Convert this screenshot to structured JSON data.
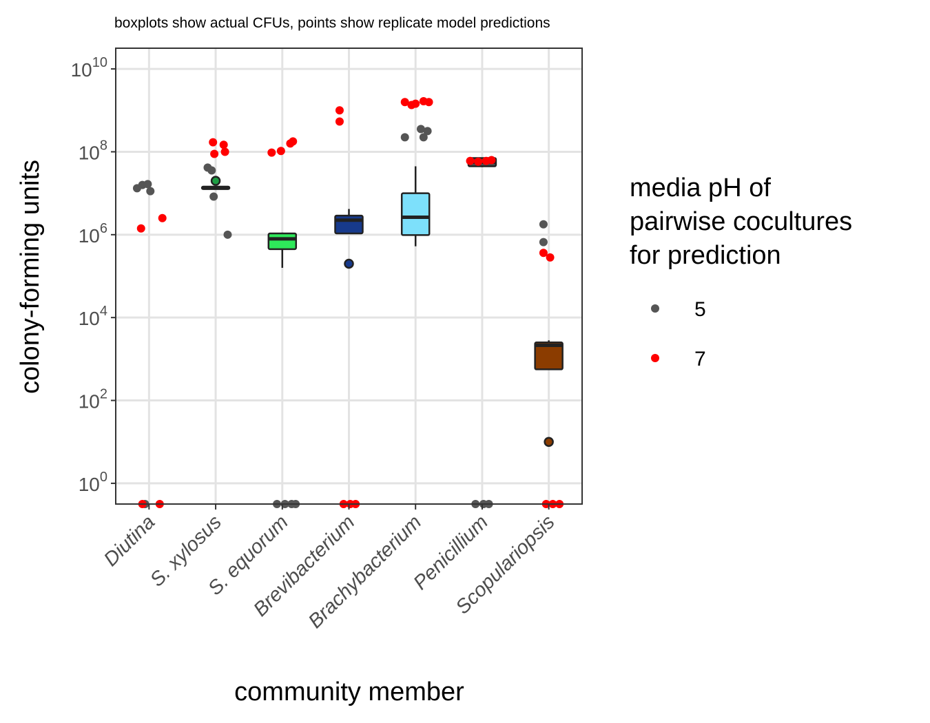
{
  "chart_data": {
    "type": "boxplot-with-points",
    "subtitle": "boxplots show actual CFUs, points show replicate model predictions",
    "xlabel": "community member",
    "ylabel": "colony-forming units",
    "y_scale": "log10",
    "y_ticks": [
      {
        "base": "10",
        "exp": "10",
        "value": 10000000000.0
      },
      {
        "base": "10",
        "exp": "8",
        "value": 100000000.0
      },
      {
        "base": "10",
        "exp": "6",
        "value": 1000000.0
      },
      {
        "base": "10",
        "exp": "4",
        "value": 10000.0
      },
      {
        "base": "10",
        "exp": "2",
        "value": 100.0
      },
      {
        "base": "10",
        "exp": "0",
        "value": 1
      }
    ],
    "ylim_log10": [
      -0.5,
      10.5
    ],
    "grid": true,
    "legend": {
      "title_lines": [
        "media pH of",
        "pairwise cocultures",
        "for prediction"
      ],
      "placement": "right",
      "entries": [
        {
          "label": "5",
          "color": "#555555"
        },
        {
          "label": "7",
          "color": "#ff0000"
        }
      ]
    },
    "categories": [
      "Diutina",
      "S. xylosus",
      "S. equorum",
      "Brevibacterium",
      "Brachybacterium",
      "Penicillium",
      "Scopulariopsis"
    ],
    "boxplots": [
      {
        "category": "Diutina",
        "fill": "#ffffff",
        "q1_log10": null,
        "median_log10": null,
        "q3_log10": null,
        "whisker_low_log10": null,
        "whisker_high_log10": null,
        "outliers_log10": []
      },
      {
        "category": "S. xylosus",
        "fill": "#1f9e45",
        "q1_log10": 7.1,
        "median_log10": 7.13,
        "q3_log10": 7.16,
        "whisker_low_log10": 7.1,
        "whisker_high_log10": 7.16,
        "outliers_log10": [
          7.3
        ]
      },
      {
        "category": "S. equorum",
        "fill": "#2ee85a",
        "q1_log10": 5.65,
        "median_log10": 5.9,
        "q3_log10": 6.03,
        "whisker_low_log10": 5.2,
        "whisker_high_log10": 6.05,
        "outliers_log10": []
      },
      {
        "category": "Brevibacterium",
        "fill": "#173a8c",
        "q1_log10": 6.03,
        "median_log10": 6.35,
        "q3_log10": 6.46,
        "whisker_low_log10": 6.03,
        "whisker_high_log10": 6.62,
        "outliers_log10": [
          5.3
        ]
      },
      {
        "category": "Brachybacterium",
        "fill": "#7de0fb",
        "q1_log10": 5.99,
        "median_log10": 6.42,
        "q3_log10": 7.0,
        "whisker_low_log10": 5.72,
        "whisker_high_log10": 7.65,
        "outliers_log10": []
      },
      {
        "category": "Penicillium",
        "fill": "#4d4d4d",
        "q1_log10": 7.65,
        "median_log10": 7.75,
        "q3_log10": 7.85,
        "whisker_low_log10": 7.63,
        "whisker_high_log10": 7.86,
        "outliers_log10": []
      },
      {
        "category": "Scopulariopsis",
        "fill": "#8b3c00",
        "q1_log10": 2.75,
        "median_log10": 3.33,
        "q3_log10": 3.4,
        "whisker_low_log10": 2.75,
        "whisker_high_log10": 3.45,
        "outliers_log10": [
          1.0
        ]
      }
    ],
    "series": [
      {
        "legend_label": "5",
        "color": "#555555",
        "points": [
          {
            "category": "Diutina",
            "dx": -0.18,
            "y_log10": 7.12
          },
          {
            "category": "Diutina",
            "dx": -0.1,
            "y_log10": 7.2
          },
          {
            "category": "Diutina",
            "dx": -0.02,
            "y_log10": 7.22
          },
          {
            "category": "Diutina",
            "dx": 0.02,
            "y_log10": 7.05
          },
          {
            "category": "Diutina",
            "dx": -0.06,
            "y_log10": -0.5
          },
          {
            "category": "S. xylosus",
            "dx": -0.12,
            "y_log10": 7.62
          },
          {
            "category": "S. xylosus",
            "dx": -0.06,
            "y_log10": 7.55
          },
          {
            "category": "S. xylosus",
            "dx": -0.03,
            "y_log10": 6.92
          },
          {
            "category": "S. xylosus",
            "dx": 0.18,
            "y_log10": 6.0
          },
          {
            "category": "S. equorum",
            "dx": -0.08,
            "y_log10": -0.5
          },
          {
            "category": "S. equorum",
            "dx": 0.04,
            "y_log10": -0.5
          },
          {
            "category": "S. equorum",
            "dx": 0.14,
            "y_log10": -0.5
          },
          {
            "category": "S. equorum",
            "dx": 0.2,
            "y_log10": -0.5
          },
          {
            "category": "Brachybacterium",
            "dx": -0.16,
            "y_log10": 8.35
          },
          {
            "category": "Brachybacterium",
            "dx": 0.08,
            "y_log10": 8.55
          },
          {
            "category": "Brachybacterium",
            "dx": 0.12,
            "y_log10": 8.35
          },
          {
            "category": "Brachybacterium",
            "dx": 0.18,
            "y_log10": 8.5
          },
          {
            "category": "Penicillium",
            "dx": -0.1,
            "y_log10": -0.5
          },
          {
            "category": "Penicillium",
            "dx": 0.02,
            "y_log10": -0.5
          },
          {
            "category": "Penicillium",
            "dx": 0.1,
            "y_log10": -0.5
          },
          {
            "category": "Scopulariopsis",
            "dx": -0.08,
            "y_log10": 6.25
          },
          {
            "category": "Scopulariopsis",
            "dx": -0.08,
            "y_log10": 5.82
          }
        ]
      },
      {
        "legend_label": "7",
        "color": "#ff0000",
        "points": [
          {
            "category": "Diutina",
            "dx": -0.12,
            "y_log10": 6.15
          },
          {
            "category": "Diutina",
            "dx": 0.2,
            "y_log10": 6.4
          },
          {
            "category": "Diutina",
            "dx": -0.1,
            "y_log10": -0.5
          },
          {
            "category": "Diutina",
            "dx": 0.16,
            "y_log10": -0.5
          },
          {
            "category": "S. xylosus",
            "dx": -0.04,
            "y_log10": 8.23
          },
          {
            "category": "S. xylosus",
            "dx": 0.12,
            "y_log10": 8.17
          },
          {
            "category": "S. xylosus",
            "dx": -0.02,
            "y_log10": 7.95
          },
          {
            "category": "S. xylosus",
            "dx": 0.14,
            "y_log10": 8.0
          },
          {
            "category": "S. equorum",
            "dx": -0.16,
            "y_log10": 7.98
          },
          {
            "category": "S. equorum",
            "dx": -0.02,
            "y_log10": 8.02
          },
          {
            "category": "S. equorum",
            "dx": 0.12,
            "y_log10": 8.2
          },
          {
            "category": "S. equorum",
            "dx": 0.16,
            "y_log10": 8.25
          },
          {
            "category": "Brevibacterium",
            "dx": -0.14,
            "y_log10": 9.0
          },
          {
            "category": "Brevibacterium",
            "dx": -0.14,
            "y_log10": 8.73
          },
          {
            "category": "Brevibacterium",
            "dx": -0.08,
            "y_log10": -0.5
          },
          {
            "category": "Brevibacterium",
            "dx": 0.02,
            "y_log10": -0.5
          },
          {
            "category": "Brevibacterium",
            "dx": 0.1,
            "y_log10": -0.5
          },
          {
            "category": "Brachybacterium",
            "dx": -0.16,
            "y_log10": 9.2
          },
          {
            "category": "Brachybacterium",
            "dx": -0.06,
            "y_log10": 9.13
          },
          {
            "category": "Brachybacterium",
            "dx": 0.0,
            "y_log10": 9.16
          },
          {
            "category": "Brachybacterium",
            "dx": 0.12,
            "y_log10": 9.22
          },
          {
            "category": "Brachybacterium",
            "dx": 0.2,
            "y_log10": 9.2
          },
          {
            "category": "Penicillium",
            "dx": -0.18,
            "y_log10": 7.78
          },
          {
            "category": "Penicillium",
            "dx": -0.06,
            "y_log10": 7.76
          },
          {
            "category": "Penicillium",
            "dx": 0.06,
            "y_log10": 7.78
          },
          {
            "category": "Penicillium",
            "dx": 0.14,
            "y_log10": 7.8
          },
          {
            "category": "Scopulariopsis",
            "dx": -0.08,
            "y_log10": 5.56
          },
          {
            "category": "Scopulariopsis",
            "dx": 0.02,
            "y_log10": 5.45
          },
          {
            "category": "Scopulariopsis",
            "dx": -0.04,
            "y_log10": -0.5
          },
          {
            "category": "Scopulariopsis",
            "dx": 0.06,
            "y_log10": -0.5
          },
          {
            "category": "Scopulariopsis",
            "dx": 0.16,
            "y_log10": -0.5
          }
        ]
      }
    ]
  }
}
